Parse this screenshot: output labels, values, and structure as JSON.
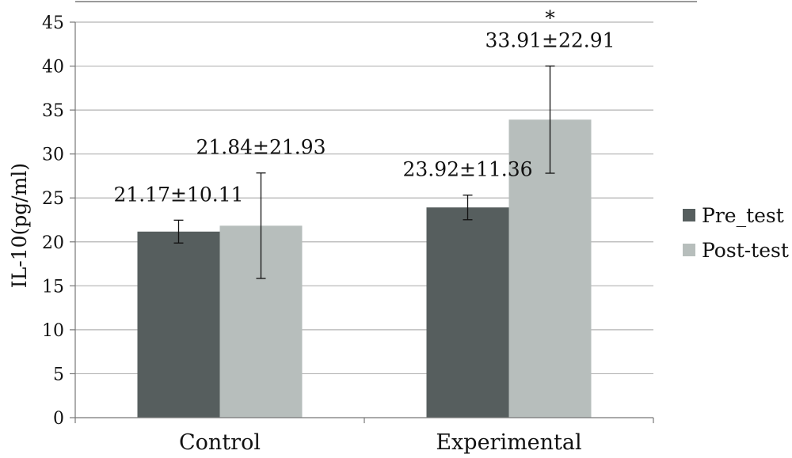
{
  "chart_data": {
    "type": "bar",
    "categories": [
      "Control",
      "Experimental"
    ],
    "series": [
      {
        "name": "Pre_test",
        "color": "#565e5e",
        "values": [
          21.17,
          23.92
        ],
        "error_plus": [
          1.3,
          1.4
        ],
        "error_minus": [
          1.3,
          1.4
        ],
        "labels": [
          "21.17±10.11",
          "23.92±11.36"
        ]
      },
      {
        "name": "Post-test",
        "color": "#b7bebc",
        "values": [
          21.84,
          33.91
        ],
        "error_plus": [
          6.0,
          6.1
        ],
        "error_minus": [
          6.0,
          6.1
        ],
        "labels": [
          "21.84±21.93",
          "33.91±22.91"
        ]
      }
    ],
    "significance_marks": [
      {
        "category": "Experimental",
        "series": "Post-test",
        "text": "*"
      }
    ],
    "title": "",
    "xlabel": "",
    "ylabel": "IL-10(pg/ml)",
    "ylim": [
      0,
      45
    ],
    "yticks": [
      0,
      5,
      10,
      15,
      20,
      25,
      30,
      35,
      40,
      45
    ],
    "grid": true,
    "legend_position": "right"
  }
}
